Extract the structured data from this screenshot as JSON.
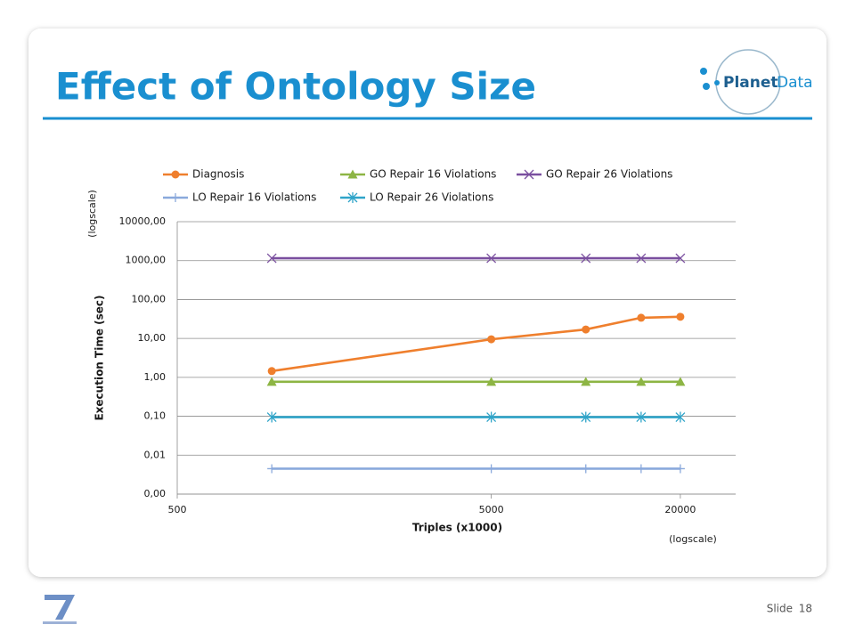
{
  "slide": {
    "title": "Effect of Ontology Size",
    "logo": {
      "word1": "Planet",
      "word2": "Data"
    },
    "footer": {
      "label": "Slide",
      "number": "18"
    }
  },
  "chart_data": {
    "type": "line",
    "x_label": "Triples (x1000)",
    "y_label": "Execution Time (sec)",
    "x_note": "(logscale)",
    "y_note": "(logscale)",
    "x_log": true,
    "y_log": true,
    "grid": true,
    "legend": "top",
    "x": [
      1000,
      5000,
      10000,
      15000,
      20000
    ],
    "xlim": [
      500,
      30000
    ],
    "xticks": [
      500,
      5000,
      20000
    ],
    "ylim": [
      0.001,
      10000
    ],
    "yticks": [
      {
        "value": 0.001,
        "label": "0,00"
      },
      {
        "value": 0.01,
        "label": "0,01"
      },
      {
        "value": 0.1,
        "label": "0,10"
      },
      {
        "value": 1,
        "label": "1,00"
      },
      {
        "value": 10,
        "label": "10,00"
      },
      {
        "value": 100,
        "label": "100,00"
      },
      {
        "value": 1000,
        "label": "1000,00"
      },
      {
        "value": 10000,
        "label": "10000,00"
      }
    ],
    "series": [
      {
        "name": "Diagnosis",
        "color": "#ef7f2d",
        "marker": "circle",
        "values": [
          1.45,
          9.5,
          17,
          34,
          36
        ]
      },
      {
        "name": "GO Repair 16 Violations",
        "color": "#8db544",
        "marker": "triangle",
        "values": [
          0.77,
          0.77,
          0.77,
          0.77,
          0.77
        ]
      },
      {
        "name": "GO Repair 26 Violations",
        "color": "#7a4f9f",
        "marker": "x",
        "values": [
          1150,
          1150,
          1150,
          1150,
          1150
        ]
      },
      {
        "name": "LO Repair 16 Violations",
        "color": "#8aa9dc",
        "marker": "plus",
        "values": [
          0.0045,
          0.0045,
          0.0045,
          0.0045,
          0.0045
        ]
      },
      {
        "name": "LO Repair 26 Violations",
        "color": "#2fa4c9",
        "marker": "star",
        "values": [
          0.095,
          0.095,
          0.095,
          0.095,
          0.095
        ]
      }
    ]
  }
}
